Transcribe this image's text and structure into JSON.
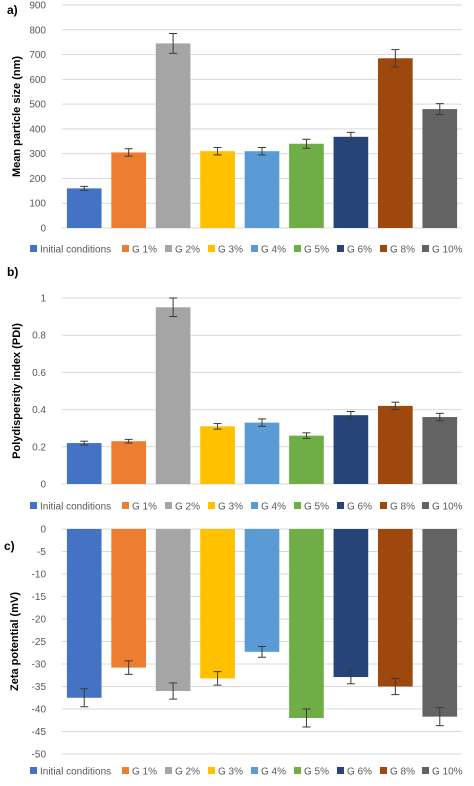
{
  "categories": [
    "Initial conditions",
    "G 1%",
    "G 2%",
    "G 3%",
    "G 4%",
    "G 5%",
    "G 6%",
    "G 8%",
    "G 10%"
  ],
  "colors": [
    "#4472c4",
    "#ed7d31",
    "#a5a5a5",
    "#ffc000",
    "#5b9bd5",
    "#70ad47",
    "#264478",
    "#9e480e",
    "#636363"
  ],
  "chart_data": [
    {
      "panel_label": "a)",
      "type": "bar",
      "ylabel": "Mean particle size (nm)",
      "ylim": [
        0,
        900
      ],
      "yticks": [
        0,
        100,
        200,
        300,
        400,
        500,
        600,
        700,
        800,
        900
      ],
      "ytick_labels": [
        "0",
        "100",
        "200",
        "300",
        "400",
        "500",
        "600",
        "700",
        "800",
        "900"
      ],
      "grid": true,
      "legend": "bottom",
      "categories": [
        "Initial conditions",
        "G 1%",
        "G 2%",
        "G 3%",
        "G 4%",
        "G 5%",
        "G 6%",
        "G 8%",
        "G 10%"
      ],
      "values": [
        160,
        305,
        745,
        310,
        310,
        340,
        368,
        685,
        480
      ],
      "errors": [
        8,
        15,
        40,
        15,
        15,
        18,
        18,
        35,
        22
      ]
    },
    {
      "panel_label": "b)",
      "type": "bar",
      "ylabel": "Polydispersity index  (PDI)",
      "ylim": [
        0,
        1
      ],
      "yticks": [
        0,
        0.2,
        0.4,
        0.6,
        0.8,
        1
      ],
      "ytick_labels": [
        "0",
        "0.2",
        "0.4",
        "0.6",
        "0.8",
        "1"
      ],
      "grid": true,
      "legend": "bottom",
      "categories": [
        "Initial conditions",
        "G 1%",
        "G 2%",
        "G 3%",
        "G 4%",
        "G 5%",
        "G 6%",
        "G 8%",
        "G 10%"
      ],
      "values": [
        0.22,
        0.23,
        0.95,
        0.31,
        0.33,
        0.26,
        0.37,
        0.42,
        0.36
      ],
      "errors": [
        0.01,
        0.01,
        0.05,
        0.015,
        0.02,
        0.015,
        0.02,
        0.02,
        0.02
      ]
    },
    {
      "panel_label": "c)",
      "type": "bar",
      "ylabel": "Zeta potential (mV)",
      "ylim": [
        -50,
        0
      ],
      "yticks": [
        0,
        -5,
        -10,
        -15,
        -20,
        -25,
        -30,
        -35,
        -40,
        -45,
        -50
      ],
      "ytick_labels": [
        "0",
        "-5",
        "-10",
        "-15",
        "-20",
        "-25",
        "-30",
        "-35",
        "-40",
        "-45",
        "-50"
      ],
      "grid": true,
      "legend": "bottom",
      "categories": [
        "Initial conditions",
        "G 1%",
        "G 2%",
        "G 3%",
        "G 4%",
        "G 5%",
        "G 6%",
        "G 8%",
        "G 10%"
      ],
      "values": [
        -37.5,
        -30.8,
        -36,
        -33.2,
        -27.3,
        -42,
        -32.9,
        -35,
        -41.7
      ],
      "errors": [
        2,
        1.5,
        1.8,
        1.5,
        1.2,
        2,
        1.5,
        1.8,
        2
      ]
    }
  ]
}
